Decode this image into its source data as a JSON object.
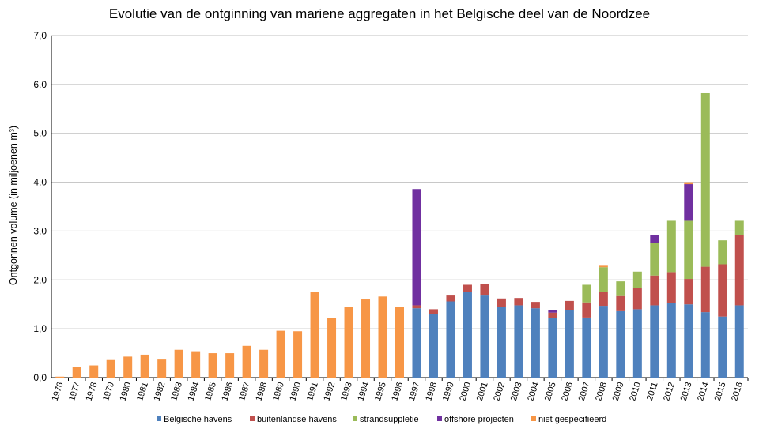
{
  "chart_data": {
    "type": "bar",
    "stacked": true,
    "title": "Evolutie van de ontginning van mariene aggregaten in het Belgische deel van de Noordzee",
    "xlabel": "",
    "ylabel": "Ontgonnen volume (in miljoenen m³)",
    "ylim": [
      0,
      7
    ],
    "yticks": [
      "0,0",
      "1,0",
      "2,0",
      "3,0",
      "4,0",
      "5,0",
      "6,0",
      "7,0"
    ],
    "grid": true,
    "legend_position": "bottom",
    "categories": [
      "1976",
      "1977",
      "1978",
      "1979",
      "1980",
      "1981",
      "1982",
      "1983",
      "1984",
      "1985",
      "1986",
      "1987",
      "1988",
      "1989",
      "1990",
      "1991",
      "1992",
      "1993",
      "1994",
      "1995",
      "1996",
      "1997",
      "1998",
      "1999",
      "2000",
      "2001",
      "2002",
      "2003",
      "2004",
      "2005",
      "2006",
      "2007",
      "2008",
      "2009",
      "2010",
      "2011",
      "2012",
      "2013",
      "2014",
      "2015",
      "2016"
    ],
    "series": [
      {
        "name": "Belgische havens",
        "color": "#4f81bd",
        "values": [
          0,
          0,
          0,
          0,
          0,
          0,
          0,
          0,
          0,
          0,
          0,
          0,
          0,
          0,
          0,
          0,
          0,
          0,
          0,
          0,
          0,
          1.42,
          1.3,
          1.56,
          1.75,
          1.68,
          1.45,
          1.48,
          1.42,
          1.22,
          1.38,
          1.23,
          1.47,
          1.36,
          1.4,
          1.48,
          1.53,
          1.5,
          1.34,
          1.25,
          1.48
        ]
      },
      {
        "name": "buitenlandse havens",
        "color": "#c0504d",
        "values": [
          0,
          0,
          0,
          0,
          0,
          0,
          0,
          0,
          0,
          0,
          0,
          0,
          0,
          0,
          0,
          0,
          0,
          0,
          0,
          0,
          0,
          0.06,
          0.1,
          0.12,
          0.15,
          0.23,
          0.17,
          0.15,
          0.13,
          0.11,
          0.19,
          0.31,
          0.29,
          0.31,
          0.43,
          0.61,
          0.63,
          0.52,
          0.93,
          1.07,
          1.44
        ]
      },
      {
        "name": "strandsuppletie",
        "color": "#9bbb59",
        "values": [
          0,
          0,
          0,
          0,
          0,
          0,
          0,
          0,
          0,
          0,
          0,
          0,
          0,
          0,
          0,
          0,
          0,
          0,
          0,
          0,
          0,
          0,
          0,
          0,
          0,
          0,
          0,
          0,
          0,
          0,
          0,
          0.36,
          0.5,
          0.3,
          0.34,
          0.66,
          1.05,
          1.19,
          3.55,
          0.49,
          0.29
        ]
      },
      {
        "name": "offshore projecten",
        "color": "#7030a0",
        "values": [
          0,
          0,
          0,
          0,
          0,
          0,
          0,
          0,
          0,
          0,
          0,
          0,
          0,
          0,
          0,
          0,
          0,
          0,
          0,
          0,
          0,
          2.38,
          0,
          0,
          0,
          0,
          0,
          0,
          0,
          0.05,
          0,
          0,
          0,
          0,
          0,
          0.16,
          0,
          0.75,
          0,
          0,
          0
        ]
      },
      {
        "name": "niet gespecifieerd",
        "color": "#f79646",
        "values": [
          0.02,
          0.22,
          0.25,
          0.36,
          0.43,
          0.47,
          0.37,
          0.57,
          0.54,
          0.5,
          0.5,
          0.65,
          0.57,
          0.96,
          0.95,
          1.75,
          1.22,
          1.45,
          1.6,
          1.66,
          1.44,
          0,
          0,
          0,
          0,
          0,
          0,
          0,
          0,
          0,
          0,
          0,
          0.03,
          0,
          0,
          0,
          0,
          0.04,
          0,
          0,
          0
        ]
      }
    ]
  }
}
